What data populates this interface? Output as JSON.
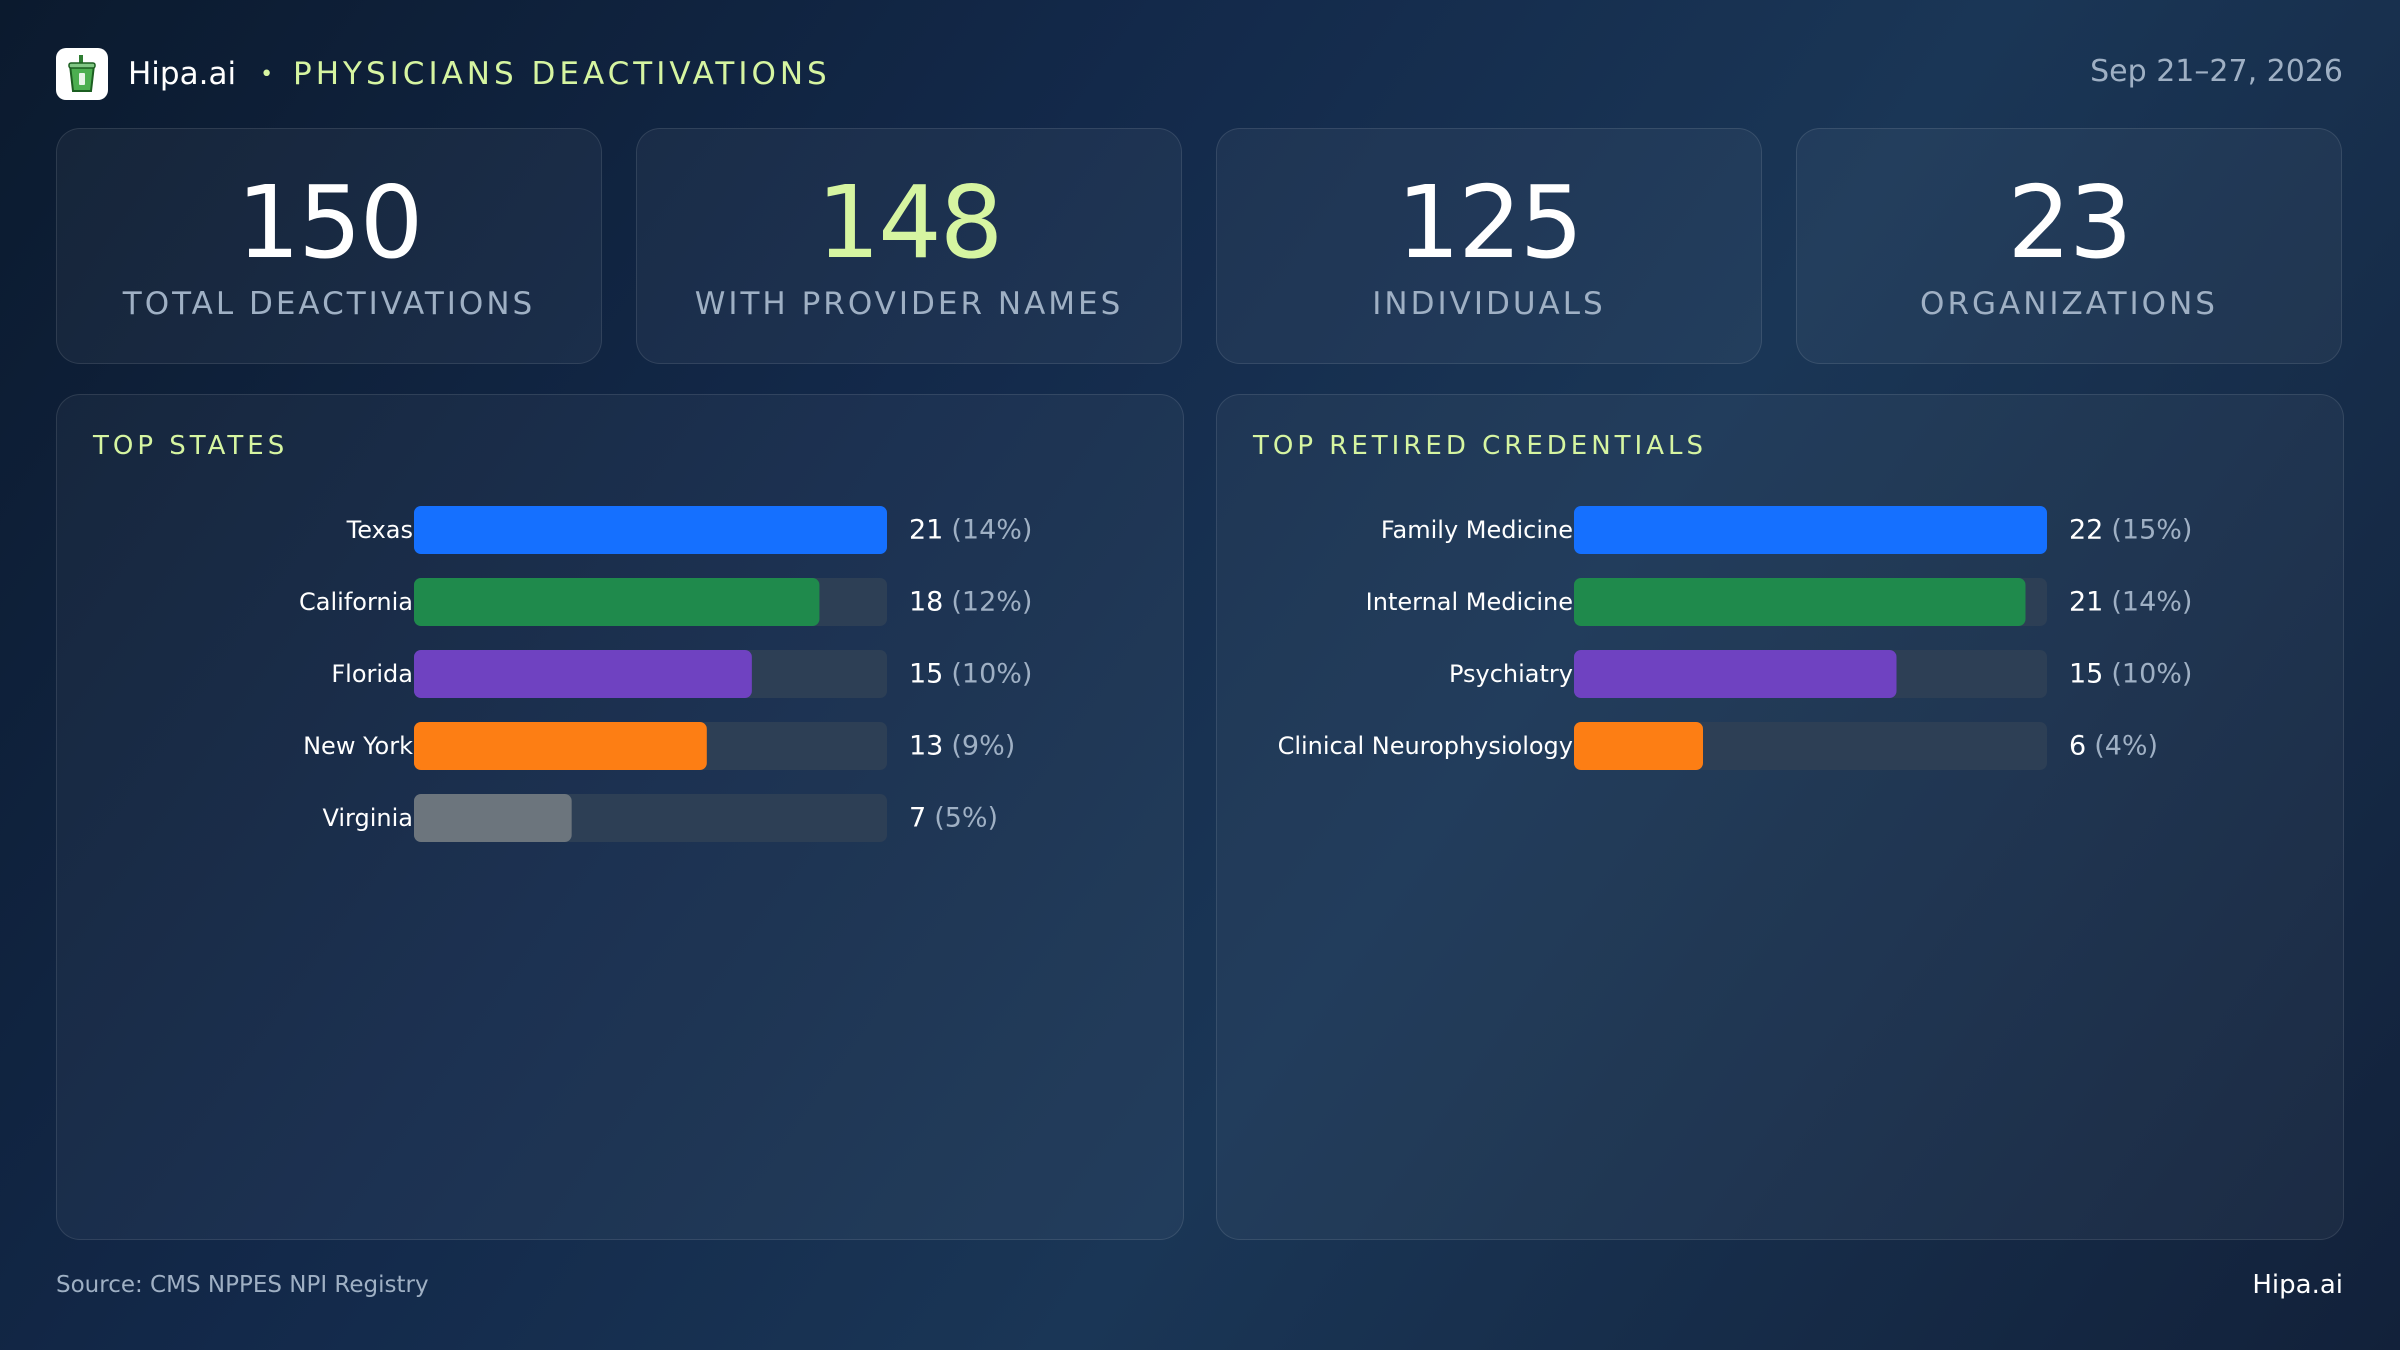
{
  "header": {
    "brand": "Hipa.ai",
    "separator": "•",
    "title": "PHYSICIANS DEACTIVATIONS",
    "date_range": "Sep 21–27, 2026"
  },
  "kpis": [
    {
      "value": "150",
      "label": "TOTAL DEACTIVATIONS",
      "accent": false
    },
    {
      "value": "148",
      "label": "WITH PROVIDER NAMES",
      "accent": true
    },
    {
      "value": "125",
      "label": "INDIVIDUALS",
      "accent": false
    },
    {
      "value": "23",
      "label": "ORGANIZATIONS",
      "accent": false
    }
  ],
  "colors": {
    "accent": "#d6f5a1",
    "blue": "#1570ff",
    "green": "#1f8a4c",
    "purple": "#6f42c1",
    "orange": "#fd7e14",
    "gray": "#6c757d",
    "track": "#2d3f55"
  },
  "chart_data": [
    {
      "type": "bar",
      "orientation": "horizontal",
      "title": "TOP STATES",
      "categories": [
        "Texas",
        "California",
        "Florida",
        "New York",
        "Virginia"
      ],
      "values": [
        21,
        18,
        15,
        13,
        7
      ],
      "percent_labels": [
        "(14%)",
        "(12%)",
        "(10%)",
        "(9%)",
        "(5%)"
      ],
      "bar_colors": [
        "#1570ff",
        "#1f8a4c",
        "#6f42c1",
        "#fd7e14",
        "#6c757d"
      ],
      "xlim": [
        0,
        21
      ]
    },
    {
      "type": "bar",
      "orientation": "horizontal",
      "title": "TOP RETIRED CREDENTIALS",
      "categories": [
        "Family Medicine",
        "Internal Medicine",
        "Psychiatry",
        "Clinical Neurophysiology"
      ],
      "values": [
        22,
        21,
        15,
        6
      ],
      "percent_labels": [
        "(15%)",
        "(14%)",
        "(10%)",
        "(4%)"
      ],
      "bar_colors": [
        "#1570ff",
        "#1f8a4c",
        "#6f42c1",
        "#fd7e14"
      ],
      "xlim": [
        0,
        22
      ]
    }
  ],
  "footer": {
    "source": "Source: CMS NPPES NPI Registry",
    "brand": "Hipa.ai"
  }
}
